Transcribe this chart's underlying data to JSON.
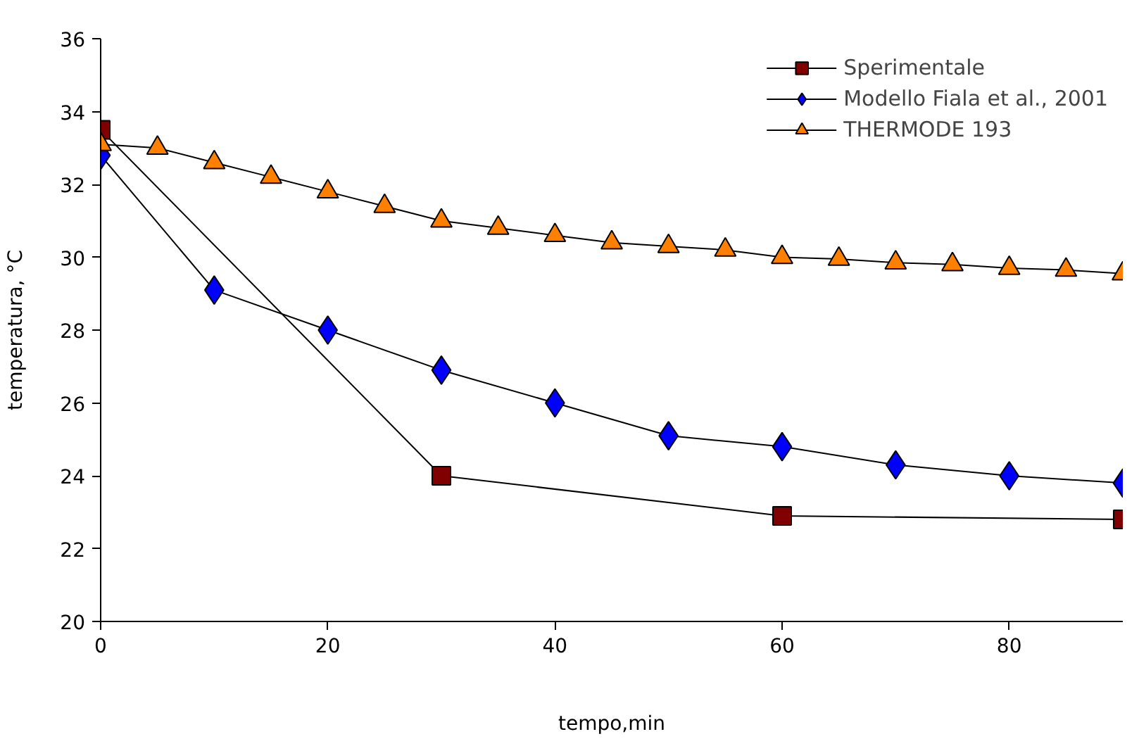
{
  "chart_data": {
    "type": "line",
    "xlabel": "tempo,min",
    "ylabel": "temperatura, °C",
    "xlim": [
      0,
      90
    ],
    "ylim": [
      20,
      36
    ],
    "xticks": [
      0,
      20,
      40,
      60,
      80
    ],
    "yticks": [
      20,
      22,
      24,
      26,
      28,
      30,
      32,
      34,
      36
    ],
    "grid": false,
    "legend": "top right",
    "line_style": "solid",
    "series": [
      {
        "name": "Sperimentale",
        "color": "#800000",
        "marker": "square",
        "x": [
          0,
          30,
          60,
          90
        ],
        "values": [
          33.5,
          24.0,
          22.9,
          22.8
        ]
      },
      {
        "name": "Modello Fiala et al., 2001",
        "color": "#0000ff",
        "marker": "diamond",
        "x": [
          0,
          10,
          20,
          30,
          40,
          50,
          60,
          70,
          80,
          90
        ],
        "values": [
          32.8,
          29.1,
          28.0,
          26.9,
          26.0,
          25.1,
          24.8,
          24.3,
          24.0,
          23.8
        ]
      },
      {
        "name": "THERMODE 193",
        "color": "#ff8000",
        "marker": "triangle",
        "x": [
          0,
          5,
          10,
          15,
          20,
          25,
          30,
          35,
          40,
          45,
          50,
          55,
          60,
          65,
          70,
          75,
          80,
          85,
          90
        ],
        "values": [
          33.1,
          33.0,
          32.6,
          32.2,
          31.8,
          31.4,
          31.0,
          30.8,
          30.6,
          30.4,
          30.3,
          30.2,
          30.0,
          29.95,
          29.85,
          29.8,
          29.7,
          29.65,
          29.55
        ]
      }
    ]
  }
}
